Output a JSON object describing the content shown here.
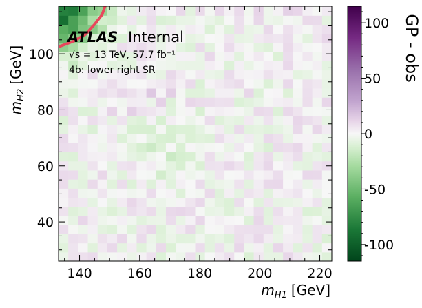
{
  "chart_data": {
    "type": "heatmap",
    "x_range": [
      133,
      224
    ],
    "y_range": [
      26,
      117
    ],
    "nx": 28,
    "ny": 28,
    "x_ticks": [
      140,
      160,
      180,
      200,
      220
    ],
    "y_ticks": [
      40,
      60,
      80,
      100
    ],
    "color_range": [
      -115,
      115
    ],
    "colorbar_ticks": [
      100,
      50,
      0,
      -50,
      -100
    ],
    "colormap": "PRGn",
    "colors": {
      "neg_dark": "#00441b",
      "neg_mid": "#5aae61",
      "neg_light": "#d9f0d3",
      "zero": "#f7f7f7",
      "pos_light": "#e7d4e8",
      "pos_mid": "#9970ab",
      "pos_dark": "#40004b",
      "curve": "#e8485c"
    },
    "curve": [
      [
        133,
        102.5
      ],
      [
        138,
        104.5
      ],
      [
        142,
        107
      ],
      [
        145,
        110.5
      ],
      [
        147.5,
        114
      ],
      [
        148.5,
        117
      ]
    ],
    "text": {
      "xlabel_var": "m",
      "xlabel_sub": "H1",
      "xlabel_unit": "[GeV]",
      "ylabel_var": "m",
      "ylabel_sub": "H2",
      "ylabel_unit": "[GeV]",
      "colorbar_label": "GP - obs",
      "brand": "ATLAS",
      "brand_status": "Internal",
      "lumi_line": "√s = 13 TeV, 57.7 fb⁻¹",
      "region_line": "4b: lower right SR"
    }
  }
}
